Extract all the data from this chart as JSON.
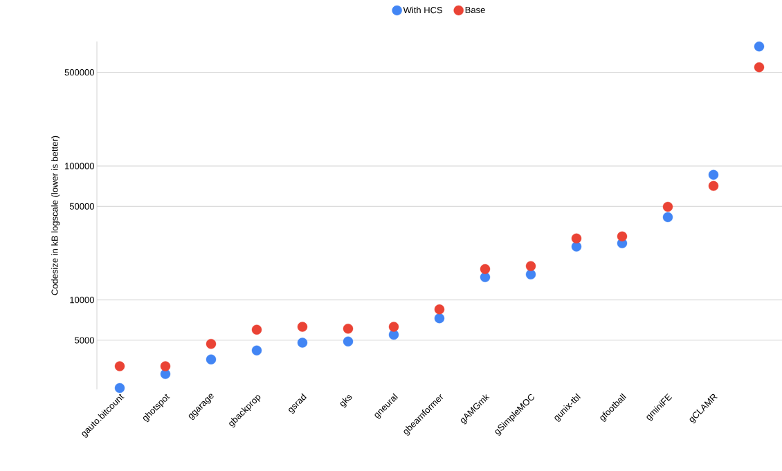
{
  "chart_data": {
    "type": "scatter",
    "ylabel": "Codesize in kB logscale (lower is better)",
    "categories": [
      "gauto.bitcount",
      "ghotspot",
      "ggarage",
      "gbackprop",
      "gsrad",
      "gks",
      "gneural",
      "gbeamformer",
      "gAMGmk",
      "gSimpleMOC",
      "gunix-tbl",
      "gfootball",
      "gminiFE",
      "gCLAMR",
      null
    ],
    "series": [
      {
        "name": "With HCS",
        "color": "#4285f4",
        "values": [
          2200,
          2800,
          3600,
          4200,
          4800,
          4900,
          5500,
          7300,
          14800,
          15500,
          25000,
          26500,
          41500,
          86000,
          780000
        ]
      },
      {
        "name": "Base",
        "color": "#ea4335",
        "values": [
          3200,
          3200,
          4700,
          6000,
          6300,
          6100,
          6300,
          8500,
          17000,
          17900,
          28800,
          29800,
          49600,
          71000,
          546000
        ]
      }
    ],
    "log": "y",
    "ylim": [
      2150,
      850000
    ],
    "yticks": [
      5000,
      10000,
      50000,
      100000,
      500000
    ],
    "grid": "y",
    "legend": "top",
    "marker": "circle"
  }
}
